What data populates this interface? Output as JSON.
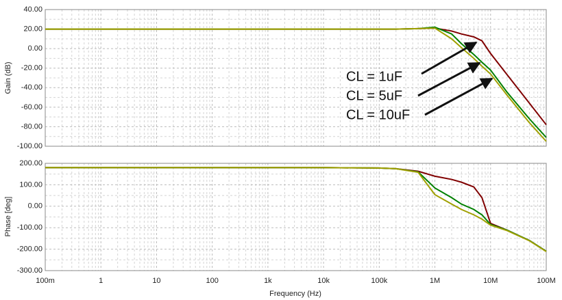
{
  "chart_data": [
    {
      "type": "line",
      "ylabel": "Gain (dB)",
      "x": [
        0.1,
        1,
        10,
        100,
        1000,
        10000,
        100000,
        200000,
        500000,
        1000000,
        2000000,
        3000000,
        5000000,
        7000000,
        10000000,
        20000000,
        50000000,
        100000000
      ],
      "xlim": [
        0.1,
        100000000
      ],
      "xscale": "log",
      "ylim": [
        -100,
        40
      ],
      "yticks": [
        {
          "value": 40,
          "label": "40.00"
        },
        {
          "value": 20,
          "label": "20.00"
        },
        {
          "value": 0,
          "label": "0.00"
        },
        {
          "value": -20,
          "label": "-20.00"
        },
        {
          "value": -40,
          "label": "-40.00"
        },
        {
          "value": -60,
          "label": "-60.00"
        },
        {
          "value": -80,
          "label": "-80.00"
        },
        {
          "value": -100,
          "label": "-100.00"
        }
      ],
      "grid": true,
      "series": [
        {
          "name": "CL = 1uF",
          "color": "#800000",
          "values": [
            20,
            20,
            20,
            20,
            20,
            20,
            20,
            20,
            20.5,
            21,
            18,
            15,
            12,
            8,
            -5,
            -27,
            -56,
            -78
          ]
        },
        {
          "name": "CL = 5uF",
          "color": "#008000",
          "values": [
            20,
            20,
            20,
            20,
            20,
            20,
            20,
            20,
            20.5,
            22,
            15,
            5,
            -6,
            -14,
            -22,
            -45,
            -72,
            -91
          ]
        },
        {
          "name": "CL = 10uF",
          "color": "#a0a000",
          "values": [
            20,
            20,
            20,
            20,
            20,
            20,
            20,
            20,
            20.5,
            21,
            10,
            1,
            -10,
            -18,
            -26,
            -48,
            -76,
            -95
          ]
        }
      ]
    },
    {
      "type": "line",
      "ylabel": "Phase [deg]",
      "xlabel": "Frequency (Hz)",
      "x": [
        0.1,
        1,
        10,
        100,
        1000,
        10000,
        100000,
        200000,
        500000,
        1000000,
        2000000,
        3000000,
        5000000,
        7000000,
        10000000,
        20000000,
        50000000,
        100000000
      ],
      "xlim": [
        0.1,
        100000000
      ],
      "xscale": "log",
      "xticks": [
        {
          "value": 0.1,
          "label": "100m"
        },
        1,
        10,
        100,
        {
          "value": 1000,
          "label": "1k"
        },
        {
          "value": 10000,
          "label": "10k"
        },
        {
          "value": 100000,
          "label": "100k"
        },
        {
          "value": 1000000,
          "label": "1M"
        },
        {
          "value": 10000000,
          "label": "10M"
        },
        {
          "value": 100000000,
          "label": "100M"
        }
      ],
      "ylim": [
        -300,
        200
      ],
      "yticks": [
        {
          "value": 200,
          "label": "200.00"
        },
        {
          "value": 100,
          "label": "100.00"
        },
        {
          "value": 0,
          "label": "0.00"
        },
        {
          "value": -100,
          "label": "-100.00"
        },
        {
          "value": -200,
          "label": "-200.00"
        },
        {
          "value": -300,
          "label": "-300.00"
        }
      ],
      "grid": true,
      "series": [
        {
          "color": "#800000",
          "values": [
            180,
            180,
            180,
            180,
            180,
            180,
            178,
            175,
            163,
            140,
            125,
            112,
            90,
            40,
            -80,
            -112,
            -160,
            -210
          ]
        },
        {
          "color": "#008000",
          "values": [
            180,
            180,
            180,
            180,
            180,
            180,
            178,
            175,
            160,
            85,
            40,
            10,
            -15,
            -40,
            -85,
            -112,
            -160,
            -210
          ]
        },
        {
          "color": "#a0a000",
          "values": [
            180,
            180,
            180,
            180,
            180,
            180,
            178,
            175,
            158,
            54,
            10,
            -15,
            -40,
            -60,
            -88,
            -114,
            -161,
            -211
          ]
        }
      ]
    }
  ]
}
